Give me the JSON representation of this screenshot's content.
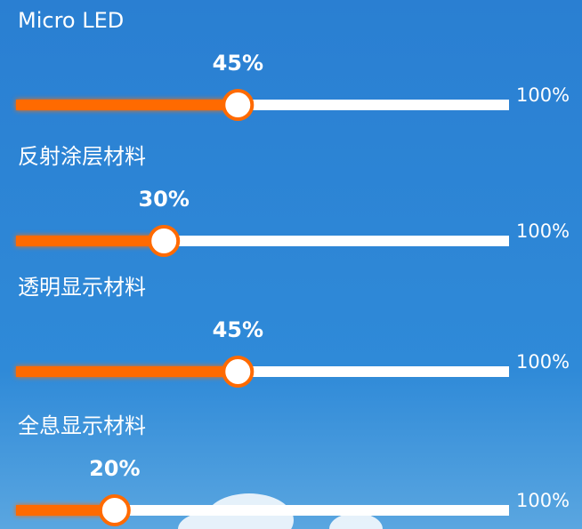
{
  "chart_data": {
    "type": "progress",
    "categories": [
      "Micro LED",
      "反射涂层材料",
      "透明显示材料",
      "全息显示材料"
    ],
    "values": [
      45,
      30,
      45,
      20
    ],
    "value_labels": [
      "45%",
      "30%",
      "45%",
      "20%"
    ],
    "xlim": [
      0,
      100
    ],
    "xticks": [
      {
        "value": 100,
        "label": "100%"
      }
    ],
    "color": "#ff6a00"
  }
}
